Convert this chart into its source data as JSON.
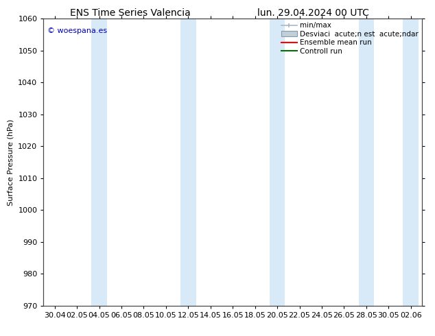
{
  "title_left": "ENS Time Series Valencia",
  "title_right": "lun. 29.04.2024 00 UTC",
  "ylabel": "Surface Pressure (hPa)",
  "ylim": [
    970,
    1060
  ],
  "yticks": [
    970,
    980,
    990,
    1000,
    1010,
    1020,
    1030,
    1040,
    1050,
    1060
  ],
  "xtick_labels": [
    "30.04",
    "02.05",
    "04.05",
    "06.05",
    "08.05",
    "10.05",
    "12.05",
    "14.05",
    "16.05",
    "18.05",
    "20.05",
    "22.05",
    "24.05",
    "26.05",
    "28.05",
    "30.05",
    "02.06"
  ],
  "num_xticks": 17,
  "shaded_band_indices": [
    2,
    6,
    10,
    14,
    16
  ],
  "band_color": "#d8eaf8",
  "bg_color": "#ffffff",
  "plot_bg_color": "#ffffff",
  "watermark_text": "© woespana.es",
  "watermark_color": "#0000bb",
  "legend_label_minmax": "min/max",
  "legend_label_desv": "Desviaci  acute;n est  acute;ndar",
  "legend_label_ensemble": "Ensemble mean run",
  "legend_label_control": "Controll run",
  "legend_color_minmax": "#a8b8c8",
  "legend_color_desv": "#c0cfd8",
  "legend_line_ensemble": "#ff0000",
  "legend_line_control": "#007000",
  "title_fontsize": 10,
  "axis_label_fontsize": 8,
  "tick_fontsize": 8,
  "legend_fontsize": 7.5
}
